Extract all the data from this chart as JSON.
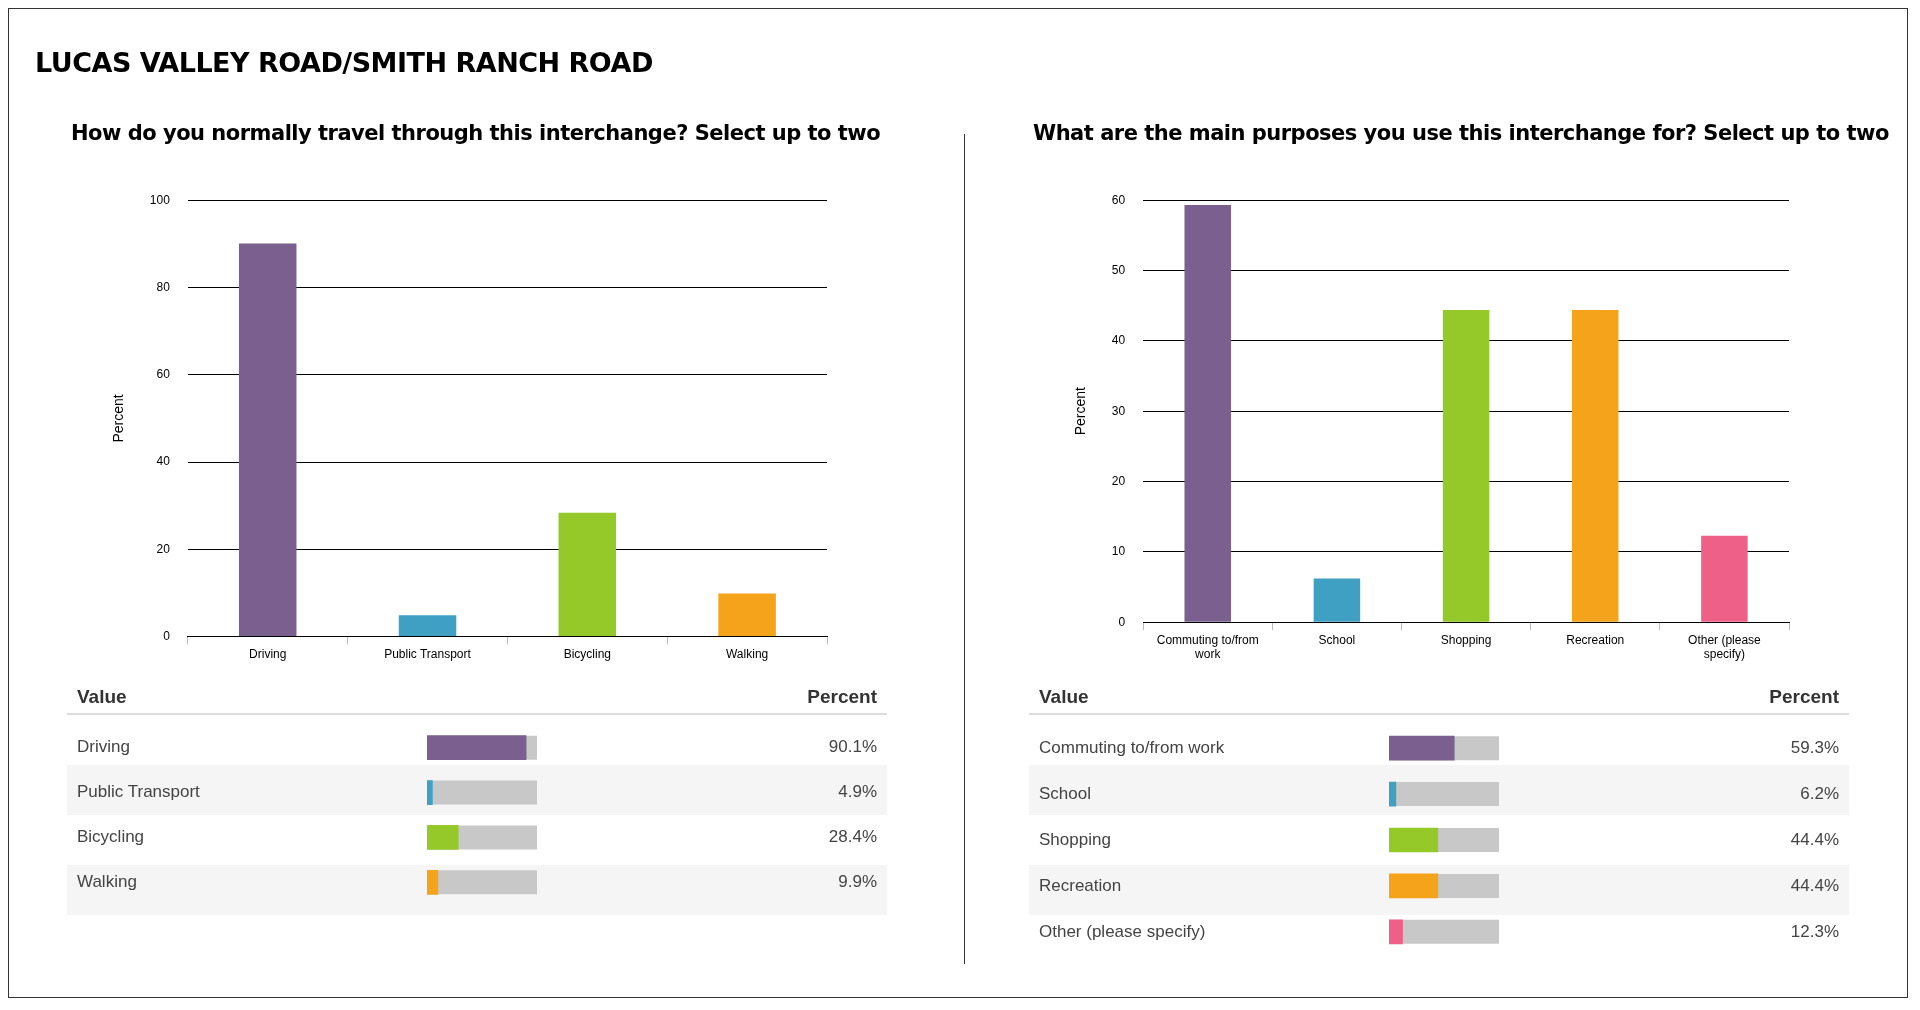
{
  "chart_data": [
    {
      "type": "bar",
      "title": "How do you normally travel through this interchange? Select up to two",
      "ylabel": "Percent",
      "annotations": [
        "LUCAS VALLEY ROAD/SMITH RANCH ROAD"
      ],
      "categories": [
        "Driving",
        "Public Transport",
        "Bicycling",
        "Walking"
      ],
      "values": [
        90.1,
        4.9,
        28.4,
        9.9
      ],
      "colors": [
        "#7b5f8f",
        "#3fa0c3",
        "#95c92a",
        "#f5a31a"
      ],
      "ylim": [
        0,
        100
      ],
      "yticks": [
        0,
        20,
        40,
        60,
        80,
        100
      ],
      "grid": "y",
      "legend": false
    },
    {
      "type": "bar",
      "orientation": "horizontal",
      "annotations": [
        "Value",
        "Percent"
      ],
      "categories": [
        "Driving",
        "Public Transport",
        "Bicycling",
        "Walking"
      ],
      "values": [
        90.1,
        4.9,
        28.4,
        9.9
      ],
      "colors": [
        "#7b5f8f",
        "#3fa0c3",
        "#95c92a",
        "#f5a31a"
      ],
      "value_labels": [
        "90.1%",
        "4.9%",
        "28.4%",
        "9.9%"
      ],
      "xlim": [
        0,
        100
      ],
      "tick_labels": "y",
      "legend": false
    },
    {
      "type": "bar",
      "title": "What are the main purposes you use this interchange for? Select up to two",
      "ylabel": "Percent",
      "categories": [
        "Commuting to/from work",
        "School",
        "Shopping",
        "Recreation",
        "Other (please specify)"
      ],
      "values": [
        59.3,
        6.2,
        44.4,
        44.4,
        12.3
      ],
      "colors": [
        "#7b5f8f",
        "#3fa0c3",
        "#95c92a",
        "#f5a31a",
        "#ee6088"
      ],
      "ylim": [
        0,
        60
      ],
      "yticks": [
        0,
        10,
        20,
        30,
        40,
        50,
        60
      ],
      "grid": "y",
      "legend": false
    },
    {
      "type": "bar",
      "orientation": "horizontal",
      "annotations": [
        "Value",
        "Percent"
      ],
      "categories": [
        "Commuting to/from work",
        "School",
        "Shopping",
        "Recreation",
        "Other (please specify)"
      ],
      "values": [
        59.3,
        6.2,
        44.4,
        44.4,
        12.3
      ],
      "colors": [
        "#7b5f8f",
        "#3fa0c3",
        "#95c92a",
        "#f5a31a",
        "#ee6088"
      ],
      "value_labels": [
        "59.3%",
        "6.2%",
        "44.4%",
        "44.4%",
        "12.3%"
      ],
      "xlim": [
        0,
        100
      ],
      "tick_labels": "y",
      "legend": false
    }
  ]
}
